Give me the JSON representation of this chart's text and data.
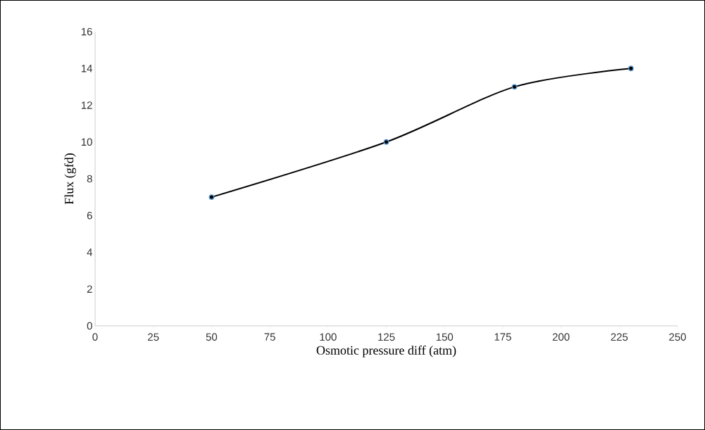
{
  "chart_data": {
    "type": "line",
    "xlabel": "Osmotic pressure diff (atm)",
    "ylabel": "Flux (gfd)",
    "x": [
      50,
      125,
      180,
      230
    ],
    "series": [
      {
        "color": "#000000",
        "values": [
          7,
          10,
          13,
          14
        ]
      }
    ],
    "marker": "circle",
    "xlim": [
      0,
      250
    ],
    "ylim": [
      0,
      16
    ],
    "xticks": [
      0,
      25,
      50,
      75,
      100,
      125,
      150,
      175,
      200,
      225,
      250
    ],
    "yticks": [
      0,
      2,
      4,
      6,
      8,
      10,
      12,
      14,
      16
    ]
  }
}
